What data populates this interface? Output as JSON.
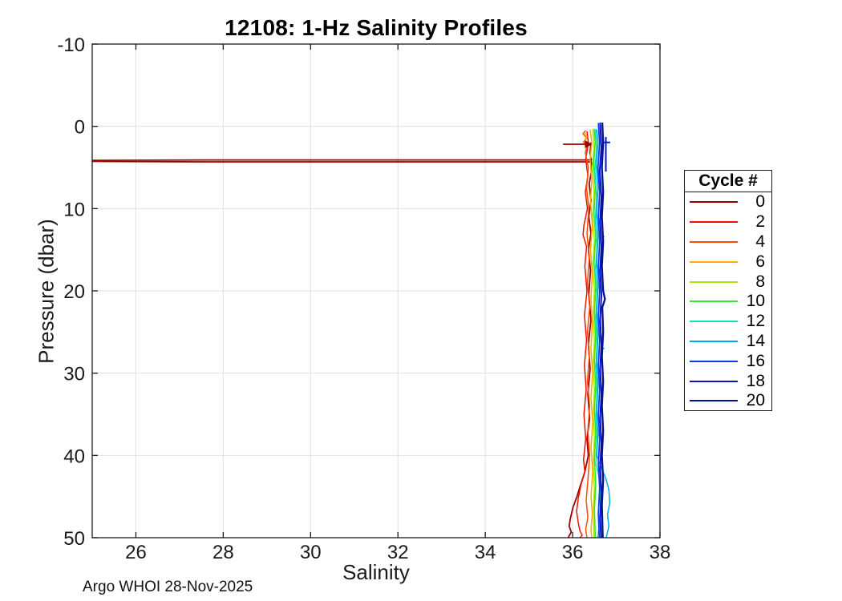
{
  "footer_text": "Argo WHOI 28-Nov-2025",
  "colors": {
    "axis": "#1a1a1a",
    "grid": "#e0e0e0",
    "background": "#ffffff"
  },
  "chart_data": {
    "type": "line",
    "title": "12108: 1-Hz Salinity Profiles",
    "xlabel": "Salinity",
    "ylabel": "Pressure (dbar)",
    "xlim": [
      25,
      38
    ],
    "ylim": [
      -10,
      50
    ],
    "y_inverted_pressure_axis": true,
    "xticks": [
      26,
      28,
      30,
      32,
      34,
      36,
      38
    ],
    "yticks": [
      -10,
      0,
      10,
      20,
      30,
      40,
      50
    ],
    "grid": true,
    "legend_title": "Cycle #",
    "legend_position": "outside-right",
    "series": [
      {
        "name": "0",
        "color": "#990000",
        "width": 1.8,
        "segments": [
          [
            [
              35.78,
              2.18
            ],
            [
              36.4,
              2.18
            ]
          ],
          [
            [
              36.44,
              3.95
            ],
            [
              36.42,
              4.08
            ],
            [
              27.55,
              4.08
            ],
            [
              25.02,
              4.14
            ],
            [
              25.02,
              4.26
            ],
            [
              27.55,
              4.32
            ],
            [
              36.42,
              4.32
            ],
            [
              36.44,
              4.55
            ]
          ],
          [
            [
              36.42,
              1.95
            ],
            [
              36.4,
              3.2
            ],
            [
              36.44,
              5.2
            ],
            [
              36.38,
              7.0
            ],
            [
              36.42,
              9.0
            ],
            [
              36.37,
              11.0
            ],
            [
              36.42,
              13.0
            ],
            [
              36.36,
              15.0
            ],
            [
              36.41,
              17.5
            ],
            [
              36.37,
              20.5
            ],
            [
              36.42,
              23.5
            ],
            [
              36.36,
              26.5
            ],
            [
              36.4,
              29.5
            ],
            [
              36.35,
              32.5
            ],
            [
              36.39,
              35.5
            ],
            [
              36.33,
              38.0
            ],
            [
              36.36,
              40.0
            ],
            [
              36.28,
              42.0
            ],
            [
              36.17,
              43.8
            ],
            [
              36.1,
              45.0
            ],
            [
              36.01,
              46.3
            ],
            [
              35.95,
              47.6
            ],
            [
              35.92,
              48.6
            ],
            [
              35.97,
              49.3
            ],
            [
              35.9,
              50.0
            ]
          ]
        ]
      },
      {
        "name": "2",
        "color": "#ee1100",
        "width": 1.5,
        "segments": [
          [
            [
              36.33,
              0.6
            ],
            [
              36.36,
              2.0
            ],
            [
              36.3,
              4.0
            ],
            [
              36.35,
              6.0
            ],
            [
              36.29,
              8.0
            ],
            [
              36.34,
              10.0
            ],
            [
              36.26,
              12.0
            ],
            [
              36.24,
              13.2
            ],
            [
              36.32,
              14.6
            ],
            [
              36.28,
              17.0
            ],
            [
              36.33,
              20.0
            ],
            [
              36.27,
              23.0
            ],
            [
              36.32,
              26.0
            ],
            [
              36.27,
              29.0
            ],
            [
              36.31,
              32.0
            ],
            [
              36.26,
              35.0
            ],
            [
              36.3,
              38.0
            ],
            [
              36.25,
              40.5
            ],
            [
              36.28,
              42.0
            ],
            [
              36.19,
              43.6
            ],
            [
              36.13,
              45.2
            ],
            [
              36.09,
              46.8
            ],
            [
              36.13,
              48.2
            ],
            [
              36.17,
              49.2
            ],
            [
              36.22,
              49.7
            ],
            [
              36.17,
              50.0
            ]
          ]
        ]
      },
      {
        "name": "4",
        "color": "#ff4d00",
        "width": 1.5,
        "segments": [
          [
            [
              36.3,
              0.5
            ],
            [
              36.24,
              0.9
            ],
            [
              36.32,
              1.4
            ],
            [
              36.25,
              1.9
            ],
            [
              36.33,
              2.4
            ],
            [
              36.29,
              3.2
            ],
            [
              36.36,
              5.0
            ],
            [
              36.32,
              7.5
            ],
            [
              36.37,
              10.0
            ],
            [
              36.33,
              13.0
            ],
            [
              36.38,
              16.0
            ],
            [
              36.34,
              19.0
            ],
            [
              36.39,
              22.0
            ],
            [
              36.34,
              25.0
            ],
            [
              36.38,
              28.0
            ],
            [
              36.34,
              31.0
            ],
            [
              36.39,
              34.0
            ],
            [
              36.35,
              37.0
            ],
            [
              36.39,
              40.0
            ],
            [
              36.35,
              43.0
            ],
            [
              36.31,
              45.5
            ],
            [
              36.35,
              47.5
            ],
            [
              36.3,
              49.0
            ],
            [
              36.33,
              50.0
            ]
          ]
        ]
      },
      {
        "name": "6",
        "color": "#ffaa00",
        "width": 1.5,
        "segments": [
          [
            [
              36.4,
              0.4
            ],
            [
              36.44,
              2.0
            ],
            [
              36.4,
              4.0
            ],
            [
              36.44,
              6.5
            ],
            [
              36.41,
              9.0
            ],
            [
              36.45,
              12.0
            ],
            [
              36.41,
              15.0
            ],
            [
              36.45,
              18.0
            ],
            [
              36.42,
              21.0
            ],
            [
              36.45,
              24.0
            ],
            [
              36.42,
              27.0
            ],
            [
              36.46,
              30.0
            ],
            [
              36.42,
              33.0
            ],
            [
              36.46,
              36.0
            ],
            [
              36.42,
              39.0
            ],
            [
              36.46,
              42.0
            ],
            [
              36.42,
              45.0
            ],
            [
              36.45,
              47.0
            ],
            [
              36.42,
              49.0
            ],
            [
              36.44,
              50.0
            ]
          ],
          [
            [
              36.28,
              0.8
            ],
            [
              36.33,
              1.2
            ],
            [
              36.27,
              1.7
            ],
            [
              36.32,
              2.2
            ]
          ]
        ]
      },
      {
        "name": "8",
        "color": "#aae600",
        "width": 1.5,
        "segments": [
          [
            [
              36.46,
              0.35
            ],
            [
              36.49,
              2.5
            ],
            [
              36.45,
              5.0
            ],
            [
              36.49,
              8.0
            ],
            [
              36.46,
              11.0
            ],
            [
              36.5,
              14.0
            ],
            [
              36.46,
              17.0
            ],
            [
              36.5,
              20.0
            ],
            [
              36.47,
              23.0
            ],
            [
              36.5,
              26.0
            ],
            [
              36.47,
              29.0
            ],
            [
              36.5,
              32.0
            ],
            [
              36.47,
              35.0
            ],
            [
              36.5,
              38.0
            ],
            [
              36.47,
              41.0
            ],
            [
              36.5,
              44.0
            ],
            [
              36.47,
              47.0
            ],
            [
              36.49,
              50.0
            ]
          ]
        ]
      },
      {
        "name": "10",
        "color": "#2ee62e",
        "width": 1.5,
        "segments": [
          [
            [
              36.49,
              0.3
            ],
            [
              36.52,
              2.0
            ],
            [
              36.48,
              4.5
            ],
            [
              36.52,
              7.5
            ],
            [
              36.49,
              10.5
            ],
            [
              36.53,
              13.5
            ],
            [
              36.49,
              16.5
            ],
            [
              36.53,
              19.5
            ],
            [
              36.5,
              22.5
            ],
            [
              36.53,
              25.5
            ],
            [
              36.5,
              28.5
            ],
            [
              36.53,
              31.5
            ],
            [
              36.5,
              34.5
            ],
            [
              36.53,
              37.5
            ],
            [
              36.5,
              40.5
            ],
            [
              36.53,
              43.5
            ],
            [
              36.5,
              46.5
            ],
            [
              36.52,
              50.0
            ]
          ]
        ]
      },
      {
        "name": "12",
        "color": "#0ce8b4",
        "width": 1.5,
        "segments": [
          [
            [
              36.52,
              0.35
            ],
            [
              36.55,
              2.5
            ],
            [
              36.51,
              5.5
            ],
            [
              36.55,
              8.5
            ],
            [
              36.52,
              11.5
            ],
            [
              36.56,
              14.5
            ],
            [
              36.52,
              17.5
            ],
            [
              36.56,
              20.5
            ],
            [
              36.53,
              23.5
            ],
            [
              36.56,
              26.5
            ],
            [
              36.53,
              29.5
            ],
            [
              36.56,
              32.5
            ],
            [
              36.53,
              35.5
            ],
            [
              36.56,
              38.5
            ],
            [
              36.53,
              41.0
            ],
            [
              36.6,
              42.5
            ],
            [
              36.65,
              44.0
            ],
            [
              36.62,
              45.5
            ],
            [
              36.66,
              47.0
            ],
            [
              36.61,
              48.5
            ],
            [
              36.57,
              50.0
            ]
          ],
          [
            [
              36.56,
              6.8
            ],
            [
              36.66,
              6.8
            ]
          ]
        ]
      },
      {
        "name": "14",
        "color": "#00a8ee",
        "width": 1.5,
        "segments": [
          [
            [
              36.55,
              0.35
            ],
            [
              36.58,
              2.0
            ],
            [
              36.54,
              4.5
            ],
            [
              36.58,
              7.5
            ],
            [
              36.55,
              10.5
            ],
            [
              36.58,
              13.5
            ],
            [
              36.55,
              16.5
            ],
            [
              36.58,
              19.5
            ],
            [
              36.55,
              22.5
            ],
            [
              36.58,
              25.5
            ],
            [
              36.55,
              28.5
            ],
            [
              36.58,
              31.5
            ],
            [
              36.55,
              34.5
            ],
            [
              36.58,
              37.5
            ],
            [
              36.55,
              40.0
            ],
            [
              36.66,
              41.5
            ],
            [
              36.76,
              42.8
            ],
            [
              36.83,
              44.2
            ],
            [
              36.85,
              45.8
            ],
            [
              36.8,
              47.2
            ],
            [
              36.83,
              48.6
            ],
            [
              36.77,
              50.0
            ]
          ],
          [
            [
              36.69,
              13.4
            ],
            [
              36.73,
              13.4
            ]
          ],
          [
            [
              36.69,
              27.0
            ],
            [
              36.73,
              27.0
            ]
          ]
        ]
      },
      {
        "name": "16",
        "color": "#0a3ce8",
        "width": 1.8,
        "segments": [
          [
            [
              36.59,
              -0.4
            ],
            [
              36.62,
              2.0
            ],
            [
              36.58,
              5.0
            ],
            [
              36.62,
              8.0
            ],
            [
              36.59,
              11.0
            ],
            [
              36.62,
              14.0
            ],
            [
              36.59,
              17.0
            ],
            [
              36.62,
              20.0
            ],
            [
              36.59,
              23.0
            ],
            [
              36.62,
              26.0
            ],
            [
              36.59,
              29.0
            ],
            [
              36.62,
              32.0
            ],
            [
              36.59,
              35.0
            ],
            [
              36.62,
              38.0
            ],
            [
              36.59,
              41.0
            ],
            [
              36.62,
              44.0
            ],
            [
              36.59,
              47.0
            ],
            [
              36.61,
              50.0
            ]
          ]
        ]
      },
      {
        "name": "18",
        "color": "#0712cf",
        "width": 2.0,
        "segments": [
          [
            [
              36.63,
              -0.45
            ],
            [
              36.66,
              2.5
            ],
            [
              36.62,
              5.5
            ],
            [
              36.66,
              8.5
            ],
            [
              36.63,
              11.5
            ],
            [
              36.66,
              14.5
            ],
            [
              36.63,
              17.5
            ],
            [
              36.66,
              20.5
            ],
            [
              36.63,
              23.5
            ],
            [
              36.66,
              26.5
            ],
            [
              36.63,
              29.5
            ],
            [
              36.66,
              32.5
            ],
            [
              36.63,
              35.5
            ],
            [
              36.66,
              38.5
            ],
            [
              36.63,
              41.5
            ],
            [
              36.66,
              44.5
            ],
            [
              36.63,
              47.5
            ],
            [
              36.65,
              50.0
            ]
          ],
          [
            [
              36.72,
              1.95
            ],
            [
              36.86,
              1.95
            ]
          ],
          [
            [
              36.76,
              1.3
            ],
            [
              36.76,
              5.5
            ]
          ]
        ]
      },
      {
        "name": "20",
        "color": "#00128c",
        "width": 2.3,
        "segments": [
          [
            [
              36.68,
              -0.45
            ],
            [
              36.7,
              2.0
            ],
            [
              36.67,
              5.0
            ],
            [
              36.7,
              8.0
            ],
            [
              36.67,
              11.0
            ],
            [
              36.7,
              14.0
            ],
            [
              36.67,
              17.0
            ],
            [
              36.7,
              20.0
            ],
            [
              36.74,
              21.0
            ],
            [
              36.68,
              22.0
            ],
            [
              36.7,
              25.0
            ],
            [
              36.67,
              28.0
            ],
            [
              36.7,
              31.0
            ],
            [
              36.67,
              34.0
            ],
            [
              36.7,
              37.0
            ],
            [
              36.67,
              40.0
            ],
            [
              36.7,
              43.0
            ],
            [
              36.67,
              46.0
            ],
            [
              36.69,
              50.0
            ]
          ]
        ]
      }
    ],
    "markers": [
      {
        "type": "arrow-right",
        "s": 36.41,
        "p": 2.18,
        "color": "#990000"
      }
    ]
  }
}
